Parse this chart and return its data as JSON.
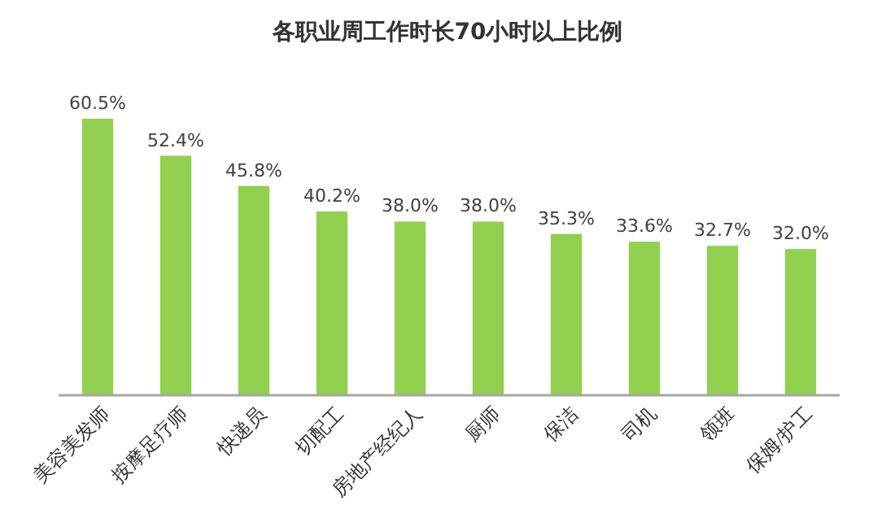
{
  "chart_data": {
    "type": "bar",
    "title": "各职业周工作时长70小时以上比例",
    "categories": [
      "美容美发师",
      "按摩足疗师",
      "快递员",
      "切配工",
      "房地产经纪人",
      "厨师",
      "保洁",
      "司机",
      "领班",
      "保姆/护工"
    ],
    "values": [
      60.5,
      52.4,
      45.8,
      40.2,
      38.0,
      38.0,
      35.3,
      33.6,
      32.7,
      32.0
    ],
    "value_labels": [
      "60.5%",
      "52.4%",
      "45.8%",
      "40.2%",
      "38.0%",
      "38.0%",
      "35.3%",
      "33.6%",
      "32.7%",
      "32.0%"
    ],
    "color": "#92d050"
  }
}
